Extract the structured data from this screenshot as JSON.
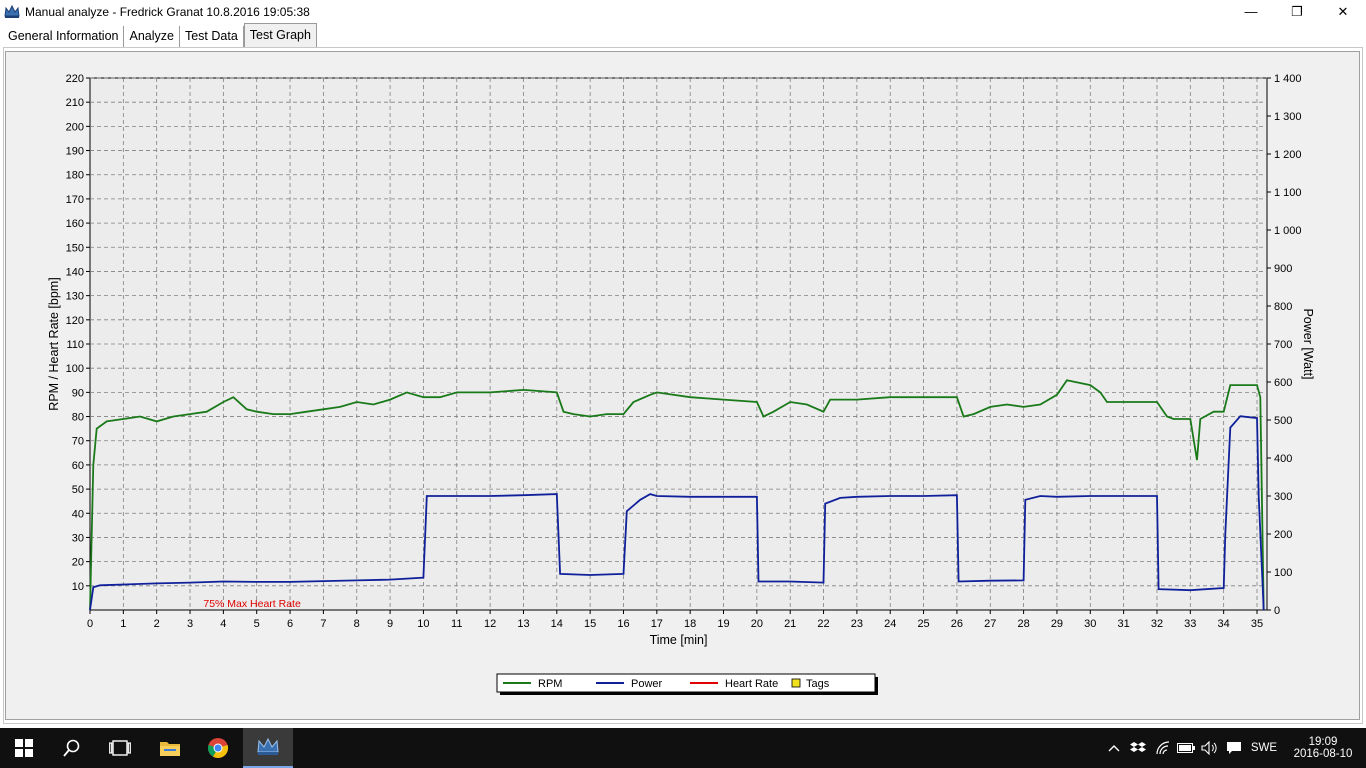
{
  "window": {
    "title": "Manual analyze - Fredrick Granat 10.8.2016 19:05:38",
    "controls": {
      "minimize": "—",
      "maximize": "❐",
      "close": "✕"
    }
  },
  "tabs": [
    {
      "label": "General Information",
      "active": false
    },
    {
      "label": "Analyze",
      "active": false
    },
    {
      "label": "Test Data",
      "active": false
    },
    {
      "label": "Test Graph",
      "active": true
    }
  ],
  "colors": {
    "rpm": "#1a7a1a",
    "power": "#10209a",
    "heart_rate": "#e00000",
    "tags": "#f0e020",
    "grid": "#808080"
  },
  "chart_data": {
    "type": "line",
    "xlabel": "Time [min]",
    "ylabel": "RPM / Heart Rate [bpm]",
    "y2label": "Power [Watt]",
    "xlim": [
      0,
      35.3
    ],
    "ylim": [
      0,
      220
    ],
    "y2lim": [
      0,
      1400
    ],
    "x_ticks": [
      "0",
      "1",
      "2",
      "3",
      "4",
      "5",
      "6",
      "7",
      "8",
      "9",
      "10",
      "11",
      "12",
      "13",
      "14",
      "15",
      "16",
      "17",
      "18",
      "19",
      "20",
      "21",
      "22",
      "23",
      "24",
      "25",
      "26",
      "27",
      "28",
      "29",
      "30",
      "31",
      "32",
      "33",
      "34",
      "35"
    ],
    "y_ticks": [
      "10",
      "20",
      "30",
      "40",
      "50",
      "60",
      "70",
      "80",
      "90",
      "100",
      "110",
      "120",
      "130",
      "140",
      "150",
      "160",
      "170",
      "180",
      "190",
      "200",
      "210",
      "220"
    ],
    "y2_ticks": [
      "0",
      "100",
      "200",
      "300",
      "400",
      "500",
      "600",
      "700",
      "800",
      "900",
      "1 000",
      "1 100",
      "1 200",
      "1 300",
      "1 400"
    ],
    "grid": true,
    "legend_position": "bottom-center",
    "annotation": "75% Max Heart Rate",
    "series": [
      {
        "name": "RPM",
        "axis": "left",
        "points": [
          [
            0,
            0
          ],
          [
            0.1,
            60
          ],
          [
            0.2,
            75
          ],
          [
            0.5,
            78
          ],
          [
            1,
            79
          ],
          [
            1.5,
            80
          ],
          [
            2,
            78
          ],
          [
            2.5,
            80
          ],
          [
            3,
            81
          ],
          [
            3.5,
            82
          ],
          [
            4,
            86
          ],
          [
            4.3,
            88
          ],
          [
            4.7,
            83
          ],
          [
            5,
            82
          ],
          [
            5.5,
            81
          ],
          [
            6,
            81
          ],
          [
            6.5,
            82
          ],
          [
            7,
            83
          ],
          [
            7.5,
            84
          ],
          [
            8,
            86
          ],
          [
            8.5,
            85
          ],
          [
            9,
            87
          ],
          [
            9.5,
            90
          ],
          [
            10,
            88
          ],
          [
            10.5,
            88
          ],
          [
            11,
            90
          ],
          [
            12,
            90
          ],
          [
            13,
            91
          ],
          [
            14,
            90
          ],
          [
            14.2,
            82
          ],
          [
            14.5,
            81
          ],
          [
            15,
            80
          ],
          [
            15.5,
            81
          ],
          [
            16,
            81
          ],
          [
            16.3,
            86
          ],
          [
            16.8,
            89
          ],
          [
            17,
            90
          ],
          [
            18,
            88
          ],
          [
            19,
            87
          ],
          [
            20,
            86
          ],
          [
            20.2,
            80
          ],
          [
            20.5,
            82
          ],
          [
            21,
            86
          ],
          [
            21.5,
            85
          ],
          [
            22,
            82
          ],
          [
            22.2,
            87
          ],
          [
            23,
            87
          ],
          [
            24,
            88
          ],
          [
            25,
            88
          ],
          [
            26,
            88
          ],
          [
            26.2,
            80
          ],
          [
            26.5,
            81
          ],
          [
            27,
            84
          ],
          [
            27.5,
            85
          ],
          [
            28,
            84
          ],
          [
            28.5,
            85
          ],
          [
            29,
            89
          ],
          [
            29.3,
            95
          ],
          [
            30,
            93
          ],
          [
            30.3,
            90
          ],
          [
            30.5,
            86
          ],
          [
            31,
            86
          ],
          [
            32,
            86
          ],
          [
            32.3,
            80
          ],
          [
            32.5,
            79
          ],
          [
            33,
            79
          ],
          [
            33.2,
            62
          ],
          [
            33.3,
            79
          ],
          [
            33.7,
            82
          ],
          [
            34,
            82
          ],
          [
            34.2,
            93
          ],
          [
            34.5,
            93
          ],
          [
            35,
            93
          ],
          [
            35.1,
            88
          ],
          [
            35.2,
            0
          ]
        ]
      },
      {
        "name": "Power",
        "axis": "right",
        "points": [
          [
            0,
            0
          ],
          [
            0.1,
            60
          ],
          [
            0.3,
            65
          ],
          [
            1,
            67
          ],
          [
            2,
            70
          ],
          [
            3,
            72
          ],
          [
            4,
            75
          ],
          [
            5,
            74
          ],
          [
            6,
            74
          ],
          [
            7,
            76
          ],
          [
            8,
            78
          ],
          [
            9,
            80
          ],
          [
            10,
            85
          ],
          [
            10.1,
            300
          ],
          [
            11,
            300
          ],
          [
            12,
            300
          ],
          [
            13,
            302
          ],
          [
            14,
            305
          ],
          [
            14.1,
            95
          ],
          [
            15,
            92
          ],
          [
            16,
            95
          ],
          [
            16.1,
            260
          ],
          [
            16.5,
            290
          ],
          [
            16.8,
            305
          ],
          [
            17,
            300
          ],
          [
            18,
            298
          ],
          [
            19,
            298
          ],
          [
            20,
            298
          ],
          [
            20.05,
            75
          ],
          [
            21,
            75
          ],
          [
            22,
            72
          ],
          [
            22.05,
            280
          ],
          [
            22.5,
            295
          ],
          [
            23,
            298
          ],
          [
            24,
            300
          ],
          [
            25,
            300
          ],
          [
            26,
            302
          ],
          [
            26.05,
            75
          ],
          [
            27,
            77
          ],
          [
            28,
            78
          ],
          [
            28.05,
            290
          ],
          [
            28.5,
            300
          ],
          [
            29,
            298
          ],
          [
            30,
            300
          ],
          [
            31,
            300
          ],
          [
            32,
            300
          ],
          [
            32.05,
            55
          ],
          [
            33,
            52
          ],
          [
            34,
            58
          ],
          [
            34.05,
            200
          ],
          [
            34.2,
            480
          ],
          [
            34.5,
            510
          ],
          [
            35,
            505
          ],
          [
            35.05,
            300
          ],
          [
            35.2,
            0
          ]
        ]
      },
      {
        "name": "Heart Rate",
        "axis": "left",
        "points": []
      },
      {
        "name": "Tags",
        "axis": "left",
        "points": []
      }
    ]
  },
  "taskbar": {
    "language": "SWE",
    "time": "19:09",
    "date": "2016-08-10"
  }
}
